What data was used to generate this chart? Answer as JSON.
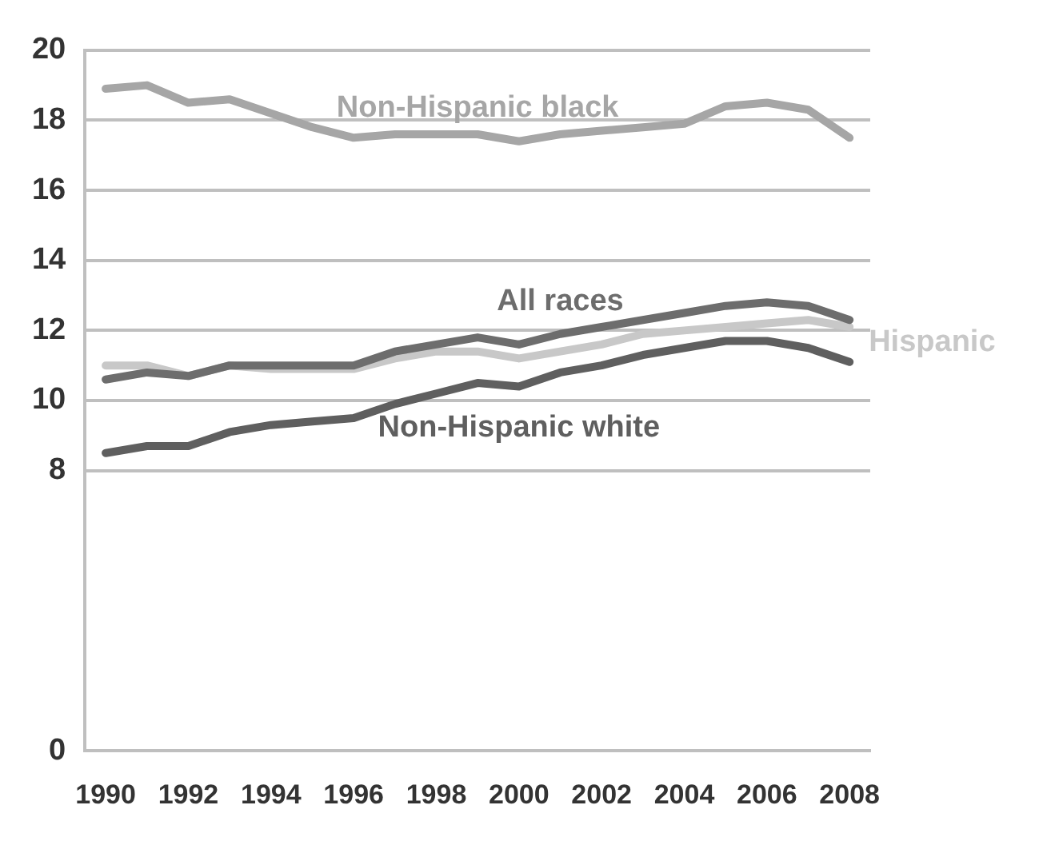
{
  "chart_data": {
    "type": "line",
    "categories": [
      "1990",
      null,
      "1992",
      null,
      "1994",
      null,
      "1996",
      null,
      "1998",
      null,
      "2000",
      null,
      "2002",
      null,
      "2004",
      null,
      "2006",
      null,
      "2008"
    ],
    "series": [
      {
        "name": "Non-Hispanic black",
        "color": "#a6a6a6",
        "values": [
          18.9,
          19.0,
          18.5,
          18.6,
          18.2,
          17.8,
          17.5,
          17.6,
          17.6,
          17.6,
          17.4,
          17.6,
          17.7,
          17.8,
          17.9,
          18.4,
          18.5,
          18.3,
          17.5
        ]
      },
      {
        "name": "All races",
        "color": "#6d6d6d",
        "values": [
          10.6,
          10.8,
          10.7,
          11.0,
          11.0,
          11.0,
          11.0,
          11.4,
          11.6,
          11.8,
          11.6,
          11.9,
          12.1,
          12.3,
          12.5,
          12.7,
          12.8,
          12.7,
          12.3
        ]
      },
      {
        "name": "Hispanic",
        "color": "#c8c8c8",
        "values": [
          11.0,
          11.0,
          10.7,
          11.0,
          10.9,
          10.9,
          10.9,
          11.2,
          11.4,
          11.4,
          11.2,
          11.4,
          11.6,
          11.9,
          12.0,
          12.1,
          12.2,
          12.3,
          12.1
        ]
      },
      {
        "name": "Non-Hispanic white",
        "color": "#5f5f5f",
        "values": [
          8.5,
          8.7,
          8.7,
          9.1,
          9.3,
          9.4,
          9.5,
          9.9,
          10.2,
          10.5,
          10.4,
          10.8,
          11.0,
          11.3,
          11.5,
          11.7,
          11.7,
          11.5,
          11.1
        ]
      }
    ],
    "ylim": [
      0,
      20
    ],
    "yticks": [
      0,
      8,
      10,
      12,
      14,
      16,
      18,
      20
    ],
    "grid": "y",
    "legend": false,
    "marker": "none",
    "line_style": "solid"
  }
}
